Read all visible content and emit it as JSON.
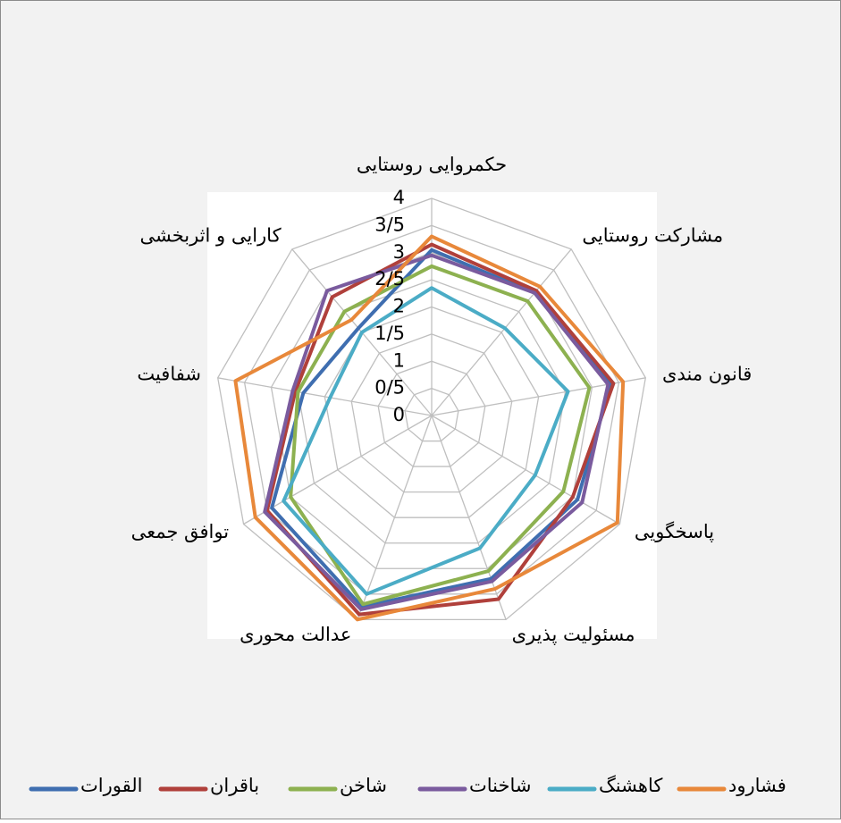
{
  "chart_data": {
    "type": "radar",
    "categories": [
      "حکمروایی روستایی",
      "مشارکت روستایی",
      "قانون مندی",
      "پاسخگویی",
      "مسئولیت پذیری",
      "عدالت محوری",
      "توافق جمعی",
      "شفافیت",
      "کارایی و اثربخشی"
    ],
    "rlim": [
      0,
      4
    ],
    "rticks": [
      0,
      {
        "value": 0.5,
        "label": "0/5"
      },
      1,
      {
        "value": 1.5,
        "label": "1/5"
      },
      2,
      {
        "value": 2.5,
        "label": "2/5"
      },
      3,
      {
        "value": 3.5,
        "label": "3/5"
      },
      4
    ],
    "grid": true,
    "legend": "bottom",
    "series": [
      {
        "name": "القورات",
        "color": "#3f6eb0",
        "values": [
          3.05,
          2.95,
          3.35,
          3.1,
          3.2,
          3.75,
          3.4,
          2.4,
          2.1
        ]
      },
      {
        "name": "باقران",
        "color": "#b0403b",
        "values": [
          3.15,
          3.0,
          3.4,
          3.0,
          3.6,
          3.9,
          3.5,
          2.55,
          2.85
        ]
      },
      {
        "name": "شاخن",
        "color": "#8db150",
        "values": [
          2.75,
          2.75,
          2.95,
          2.8,
          3.05,
          3.7,
          3.0,
          2.5,
          2.5
        ]
      },
      {
        "name": "شاخنات",
        "color": "#7a5b9e",
        "values": [
          2.95,
          2.95,
          3.3,
          3.2,
          3.25,
          3.8,
          3.55,
          2.6,
          3.0
        ]
      },
      {
        "name": "کاهشنگ",
        "color": "#4bacc6",
        "values": [
          2.35,
          2.1,
          2.55,
          2.2,
          2.6,
          3.5,
          3.15,
          1.9,
          2.0
        ]
      },
      {
        "name": "فشارود",
        "color": "#e8883a",
        "values": [
          3.3,
          3.1,
          3.58,
          3.95,
          3.4,
          4.0,
          3.75,
          3.67,
          2.3
        ]
      }
    ]
  }
}
